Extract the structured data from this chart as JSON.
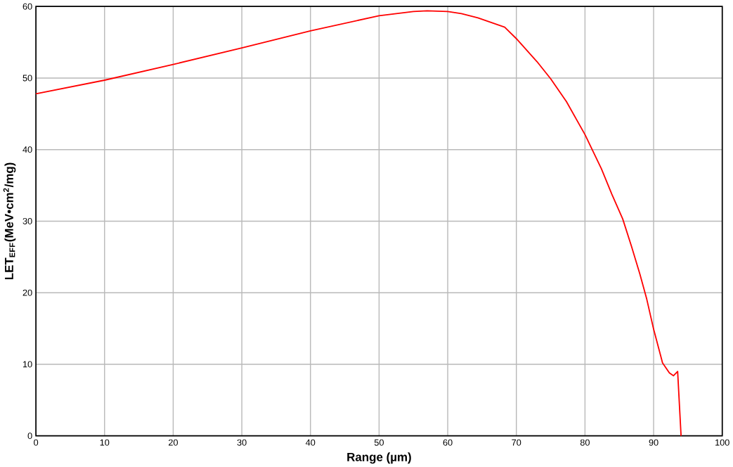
{
  "chart_data": {
    "type": "line",
    "xlabel": "Range (µm)",
    "ylabel": "LET$_{EFF}$(MeV•cm$^{2}$/mg)",
    "xlim": [
      0,
      100
    ],
    "ylim": [
      0,
      60
    ],
    "xticks": [
      0,
      10,
      20,
      30,
      40,
      50,
      60,
      70,
      80,
      90,
      100
    ],
    "yticks": [
      0,
      10,
      20,
      30,
      40,
      50,
      60
    ],
    "grid": true,
    "marker": "none",
    "line_style": "solid",
    "series": [
      {
        "color": "#ff0000",
        "x": [
          0,
          10,
          20,
          30,
          40,
          50,
          55,
          57,
          60,
          62,
          64.4,
          68.3,
          70,
          73,
          75,
          77.3,
          80,
          82.4,
          83.9,
          85.5,
          86.8,
          88,
          89,
          90,
          91.3,
          92.3,
          92.9,
          93.5,
          94.0
        ],
        "values": [
          47.8,
          49.7,
          51.9,
          54.2,
          56.6,
          58.7,
          59.3,
          59.4,
          59.3,
          59.0,
          58.4,
          57.1,
          55.5,
          52.3,
          49.9,
          46.7,
          42.1,
          37.3,
          33.8,
          30.3,
          26.4,
          22.6,
          19.1,
          14.9,
          10.2,
          8.8,
          8.4,
          9.0,
          0
        ]
      }
    ]
  }
}
